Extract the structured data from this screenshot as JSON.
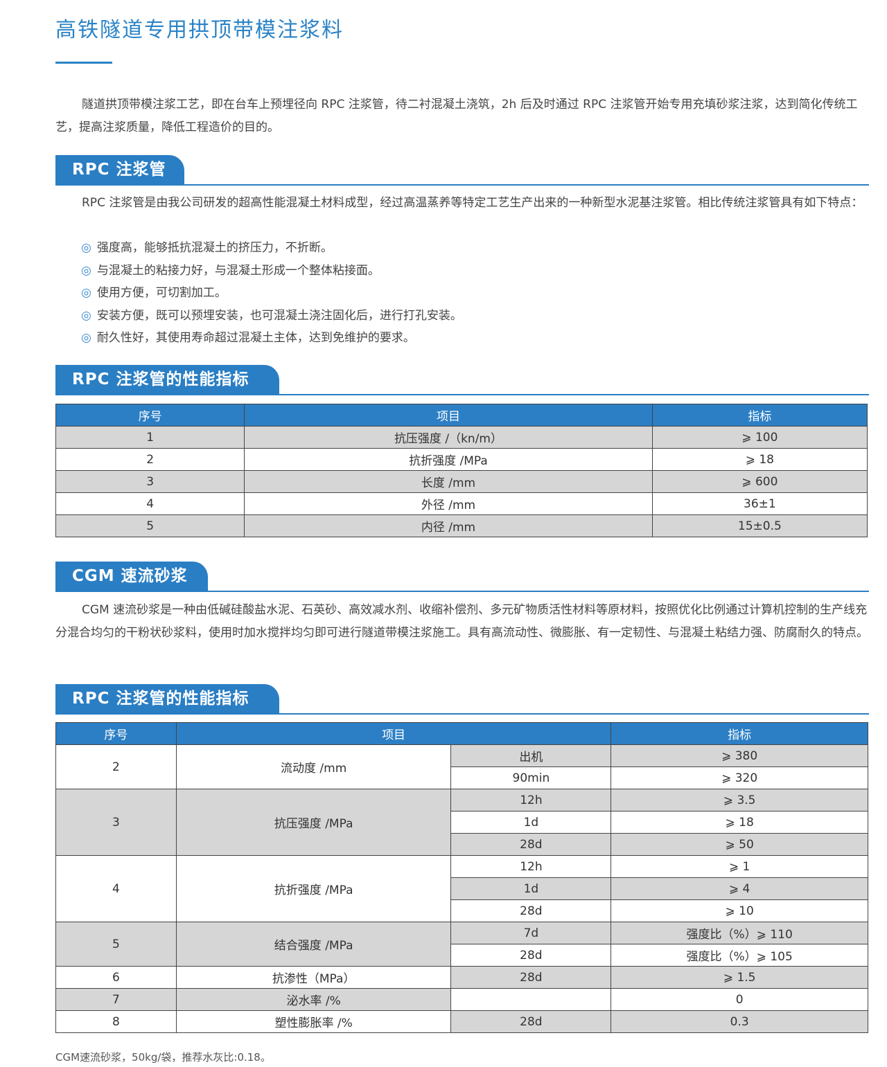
{
  "title": "高铁隧道专用拱顶带模注浆料",
  "intro": "隧道拱顶带模注浆工艺，即在台车上预埋径向 RPC 注浆管，待二衬混凝土浇筑，2h 后及时通过 RPC 注浆管开始专用充填砂浆注浆，达到简化传统工艺，提高注浆质量，降低工程造价的目的。",
  "rpc": {
    "heading": "RPC 注浆管",
    "desc": "RPC 注浆管是由我公司研发的超高性能混凝土材料成型，经过高温蒸养等特定工艺生产出来的一种新型水泥基注浆管。相比传统注浆管具有如下特点：",
    "bullet_icon": "◎",
    "features": [
      "强度高，能够抵抗混凝土的挤压力，不折断。",
      "与混凝土的粘接力好，与混凝土形成一个整体粘接面。",
      "使用方便，可切割加工。",
      "安装方便，既可以预埋安装，也可混凝土浇注固化后，进行打孔安装。",
      "耐久性好，其使用寿命超过混凝土主体，达到免维护的要求。"
    ]
  },
  "table1": {
    "heading": "RPC 注浆管的性能指标",
    "headers": [
      "序号",
      "项目",
      "指标"
    ],
    "rows": [
      [
        "1",
        "抗压强度 /（kn/m）",
        "⩾ 100"
      ],
      [
        "2",
        "抗折强度 /MPa",
        "⩾ 18"
      ],
      [
        "3",
        "长度 /mm",
        "⩾ 600"
      ],
      [
        "4",
        "外径 /mm",
        "36±1"
      ],
      [
        "5",
        "内径 /mm",
        "15±0.5"
      ]
    ]
  },
  "cgm": {
    "heading": "CGM 速流砂浆",
    "desc": "CGM 速流砂浆是一种由低碱硅酸盐水泥、石英砂、高效减水剂、收缩补偿剂、多元矿物质活性材料等原材料，按照优化比例通过计算机控制的生产线充分混合均匀的干粉状砂浆料，使用时加水搅拌均匀即可进行隧道带模注浆施工。具有高流动性、微膨胀、有一定韧性、与混凝土粘结力强、防腐耐久的特点。"
  },
  "table2": {
    "heading": "RPC 注浆管的性能指标",
    "headers": [
      "序号",
      "项目",
      "指标"
    ],
    "groups": [
      {
        "no": "2",
        "item": "流动度 /mm",
        "subs": [
          [
            "出机",
            "⩾ 380"
          ],
          [
            "90min",
            "⩾ 320"
          ]
        ]
      },
      {
        "no": "3",
        "item": "抗压强度 /MPa",
        "subs": [
          [
            "12h",
            "⩾ 3.5"
          ],
          [
            "1d",
            "⩾ 18"
          ],
          [
            "28d",
            "⩾ 50"
          ]
        ]
      },
      {
        "no": "4",
        "item": "抗折强度 /MPa",
        "subs": [
          [
            "12h",
            "⩾ 1"
          ],
          [
            "1d",
            "⩾ 4"
          ],
          [
            "28d",
            "⩾ 10"
          ]
        ]
      },
      {
        "no": "5",
        "item": "结合强度 /MPa",
        "subs": [
          [
            "7d",
            "强度比（%）⩾ 110"
          ],
          [
            "28d",
            "强度比（%）⩾ 105"
          ]
        ]
      },
      {
        "no": "6",
        "item": "抗渗性（MPa）",
        "subs": [
          [
            "28d",
            "⩾ 1.5"
          ]
        ]
      },
      {
        "no": "7",
        "item": "泌水率 /%",
        "subs": [
          [
            "",
            "0"
          ]
        ]
      },
      {
        "no": "8",
        "item": "塑性膨胀率 /%",
        "subs": [
          [
            "28d",
            "0.3"
          ]
        ]
      }
    ]
  },
  "note": "CGM速流砂浆，50kg/袋，推荐水灰比:0.18。",
  "colors": {
    "accent": "#2a7ec4",
    "row_gray": "#d6d6d6"
  }
}
